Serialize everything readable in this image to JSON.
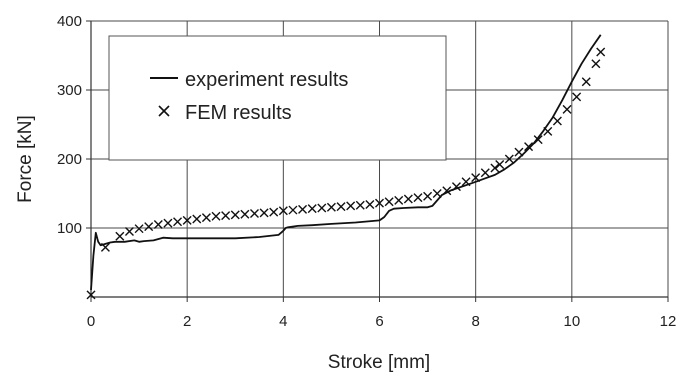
{
  "chart_data": {
    "type": "line",
    "title": "",
    "xlabel": "Stroke [mm]",
    "ylabel": "Force [kN]",
    "xlim": [
      0,
      12
    ],
    "ylim": [
      0,
      400
    ],
    "xticks": [
      0,
      2,
      4,
      6,
      8,
      10,
      12
    ],
    "yticks": [
      100,
      200,
      300,
      400
    ],
    "xtick_labels": [
      "0",
      "2",
      "4",
      "6",
      "8",
      "10",
      "12"
    ],
    "ytick_labels": [
      "100",
      "200",
      "300",
      "400"
    ],
    "grid": true,
    "legend": {
      "position": "top-left",
      "entries": [
        {
          "label": "experiment results",
          "marker": "line"
        },
        {
          "label": "FEM results",
          "marker": "x"
        }
      ]
    },
    "series": [
      {
        "name": "experiment results",
        "style": "line",
        "color": "#111111",
        "x": [
          0.0,
          0.05,
          0.1,
          0.15,
          0.2,
          0.25,
          0.3,
          0.4,
          0.5,
          0.7,
          0.9,
          1.0,
          1.1,
          1.3,
          1.5,
          1.7,
          2.0,
          2.5,
          3.0,
          3.5,
          3.9,
          4.0,
          4.05,
          4.1,
          4.3,
          4.6,
          5.0,
          5.5,
          6.0,
          6.1,
          6.2,
          6.3,
          6.5,
          6.8,
          7.0,
          7.1,
          7.2,
          7.3,
          7.5,
          7.8,
          8.0,
          8.2,
          8.4,
          8.6,
          8.8,
          9.0,
          9.2,
          9.4,
          9.6,
          9.8,
          10.0,
          10.2,
          10.4,
          10.6
        ],
        "y": [
          10,
          60,
          93,
          80,
          75,
          76,
          77,
          79,
          80,
          80,
          82,
          80,
          81,
          82,
          86,
          85,
          85,
          85,
          85,
          87,
          90,
          96,
          100,
          101,
          103,
          104,
          106,
          108,
          111,
          116,
          125,
          128,
          129,
          130,
          130,
          132,
          140,
          148,
          155,
          162,
          167,
          172,
          177,
          185,
          195,
          208,
          222,
          240,
          260,
          285,
          312,
          338,
          360,
          380
        ]
      },
      {
        "name": "FEM results",
        "style": "markers",
        "marker": "x",
        "color": "#111111",
        "x": [
          0.0,
          0.3,
          0.6,
          0.8,
          1.0,
          1.2,
          1.4,
          1.6,
          1.8,
          2.0,
          2.2,
          2.4,
          2.6,
          2.8,
          3.0,
          3.2,
          3.4,
          3.6,
          3.8,
          4.0,
          4.2,
          4.4,
          4.6,
          4.8,
          5.0,
          5.2,
          5.4,
          5.6,
          5.8,
          6.0,
          6.2,
          6.4,
          6.6,
          6.8,
          7.0,
          7.2,
          7.4,
          7.6,
          7.8,
          8.0,
          8.2,
          8.4,
          8.5,
          8.7,
          8.9,
          9.1,
          9.3,
          9.5,
          9.7,
          9.9,
          10.1,
          10.3,
          10.5,
          10.6
        ],
        "y": [
          3,
          72,
          88,
          95,
          99,
          102,
          105,
          107,
          109,
          111,
          113,
          115,
          117,
          118,
          119,
          120,
          121,
          122,
          123,
          125,
          126,
          127,
          128,
          129,
          130,
          131,
          132,
          133,
          134,
          136,
          138,
          140,
          142,
          144,
          146,
          150,
          154,
          160,
          167,
          173,
          180,
          187,
          192,
          200,
          210,
          218,
          228,
          240,
          255,
          272,
          290,
          312,
          338,
          355
        ]
      }
    ]
  }
}
